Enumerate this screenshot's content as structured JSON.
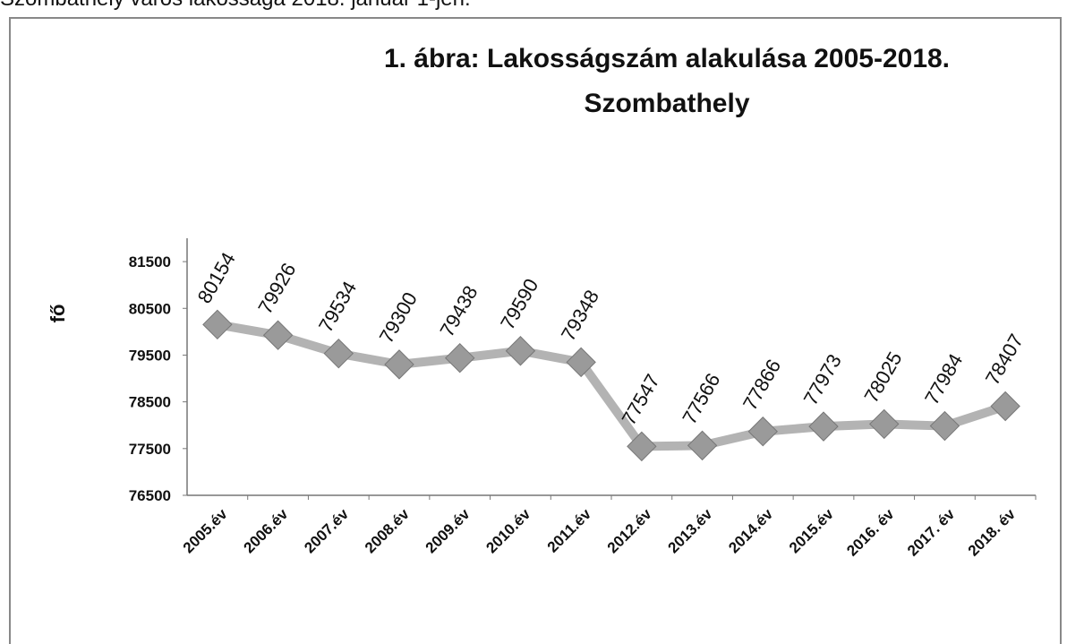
{
  "caption": "Szombathely város lakossága 2018. január 1-jén:",
  "chart_data": {
    "type": "line",
    "title": [
      "1. ábra: Lakosságszám alakulása 2005-2018.",
      "Szombathely"
    ],
    "y_label": "fő",
    "categories": [
      "2005.év",
      "2006.év",
      "2007.év",
      "2008.év",
      "2009.év",
      "2010.év",
      "2011.év",
      "2012.év",
      "2013.év",
      "2014.év",
      "2015.év",
      "2016. év",
      "2017. év",
      "2018. év"
    ],
    "values": [
      80154,
      79926,
      79534,
      79300,
      79438,
      79590,
      79348,
      77547,
      77566,
      77866,
      77973,
      78025,
      77984,
      78407
    ],
    "color": "#b3b3b3",
    "marker_color": "#9a9a9a",
    "ylim": [
      76500,
      82000
    ],
    "yticks": [
      76500,
      77500,
      78500,
      79500,
      80500,
      81500
    ],
    "grid": false
  }
}
